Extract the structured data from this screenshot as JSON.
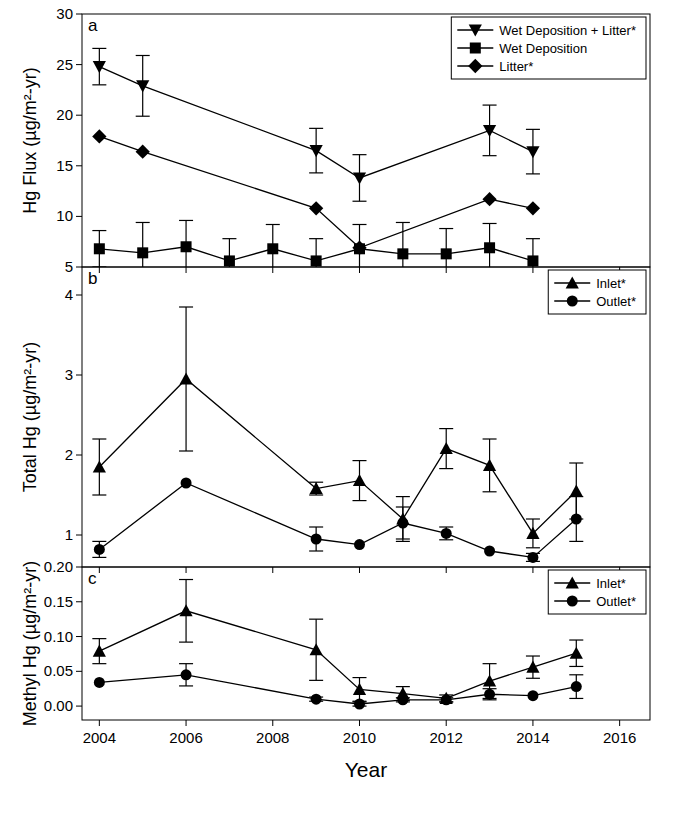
{
  "chart_data": [
    {
      "type": "line",
      "title": "a",
      "y_label": "Hg Flux (µg/m²-yr)",
      "xlim": [
        2003.6,
        2016.7
      ],
      "xticks": [
        2004,
        2006,
        2008,
        2010,
        2012,
        2014,
        2016
      ],
      "ylim": [
        5,
        30
      ],
      "yticks": [
        5,
        10,
        15,
        20,
        25,
        30
      ],
      "tick_labels": "y",
      "legend": "top-right",
      "grid": false,
      "series": [
        {
          "name": "Wet Deposition + Litter*",
          "color": "#000000",
          "marker": "triangle-down",
          "line_style": "solid",
          "x": [
            2004,
            2005,
            2009,
            2010,
            2013,
            2014
          ],
          "values": [
            24.8,
            22.9,
            16.5,
            13.8,
            18.5,
            16.4
          ],
          "errors": [
            1.8,
            3.0,
            2.2,
            2.3,
            2.5,
            2.2
          ]
        },
        {
          "name": "Wet Deposition",
          "color": "#000000",
          "marker": "square",
          "line_style": "solid",
          "x": [
            2004,
            2005,
            2006,
            2007,
            2008,
            2009,
            2010,
            2011,
            2012,
            2013,
            2014
          ],
          "values": [
            6.8,
            6.4,
            7.0,
            5.6,
            6.8,
            5.6,
            6.8,
            6.3,
            6.3,
            6.9,
            5.6
          ],
          "errors": [
            1.8,
            3.0,
            2.6,
            2.2,
            2.4,
            2.2,
            2.4,
            3.1,
            2.5,
            2.4,
            2.2
          ]
        },
        {
          "name": "Litter*",
          "color": "#000000",
          "marker": "diamond",
          "line_style": "solid",
          "x": [
            2004,
            2005,
            2009,
            2010,
            2013,
            2014
          ],
          "values": [
            17.9,
            16.4,
            10.8,
            6.9,
            11.7,
            10.8
          ]
        }
      ]
    },
    {
      "type": "line",
      "title": "b",
      "y_label": "Total Hg (µg/m²-yr)",
      "xlim": [
        2003.6,
        2016.7
      ],
      "xticks": [
        2004,
        2006,
        2008,
        2010,
        2012,
        2014,
        2016
      ],
      "ylim": [
        0.6,
        4.35
      ],
      "yticks": [
        1,
        2,
        3,
        4
      ],
      "tick_labels": "y",
      "legend": "top-right",
      "grid": false,
      "series": [
        {
          "name": "Inlet*",
          "color": "#000000",
          "marker": "triangle-up",
          "line_style": "solid",
          "x": [
            2004,
            2006,
            2009,
            2010,
            2011,
            2012,
            2013,
            2014,
            2015
          ],
          "values": [
            1.85,
            2.95,
            1.58,
            1.68,
            1.2,
            2.08,
            1.87,
            1.02,
            1.55
          ],
          "errors": [
            0.35,
            0.9,
            0.08,
            0.25,
            0.28,
            0.25,
            0.33,
            0.18,
            0.35
          ]
        },
        {
          "name": "Outlet*",
          "color": "#000000",
          "marker": "circle",
          "line_style": "solid",
          "x": [
            2004,
            2006,
            2009,
            2010,
            2011,
            2012,
            2013,
            2014,
            2015
          ],
          "values": [
            0.82,
            1.65,
            0.95,
            0.88,
            1.15,
            1.02,
            0.8,
            0.72,
            1.2
          ],
          "errors": [
            0.1,
            null,
            0.15,
            null,
            0.2,
            0.08,
            null,
            0.05,
            0.28
          ]
        }
      ]
    },
    {
      "type": "line",
      "title": "c",
      "y_label": "Methyl Hg (µg/m²-yr)",
      "x_label": "Year",
      "xlim": [
        2003.6,
        2016.7
      ],
      "xticks": [
        2004,
        2006,
        2008,
        2010,
        2012,
        2014,
        2016
      ],
      "ylim": [
        -0.02,
        0.2
      ],
      "yticks": [
        {
          "value": 0,
          "label": "0.00"
        },
        {
          "value": 0.05,
          "label": "0.05"
        },
        {
          "value": 0.1,
          "label": "0.10"
        },
        {
          "value": 0.15,
          "label": "0.15"
        },
        {
          "value": 0.2,
          "label": "0.20"
        }
      ],
      "legend": "top-right",
      "grid": false,
      "series": [
        {
          "name": "Inlet*",
          "color": "#000000",
          "marker": "triangle-up",
          "line_style": "solid",
          "x": [
            2004,
            2006,
            2009,
            2010,
            2011,
            2012,
            2013,
            2014,
            2015
          ],
          "values": [
            0.079,
            0.137,
            0.081,
            0.024,
            0.018,
            0.011,
            0.036,
            0.056,
            0.076
          ],
          "errors": [
            0.018,
            0.045,
            0.044,
            0.017,
            0.01,
            0.005,
            0.025,
            0.016,
            0.019
          ]
        },
        {
          "name": "Outlet*",
          "color": "#000000",
          "marker": "circle",
          "line_style": "solid",
          "x": [
            2004,
            2006,
            2009,
            2010,
            2011,
            2012,
            2013,
            2014,
            2015
          ],
          "values": [
            0.034,
            0.045,
            0.01,
            0.003,
            0.009,
            0.009,
            0.017,
            0.015,
            0.028
          ],
          "errors": [
            null,
            0.016,
            0.003,
            0.003,
            0.003,
            0.003,
            0.008,
            null,
            0.017
          ]
        }
      ]
    }
  ]
}
